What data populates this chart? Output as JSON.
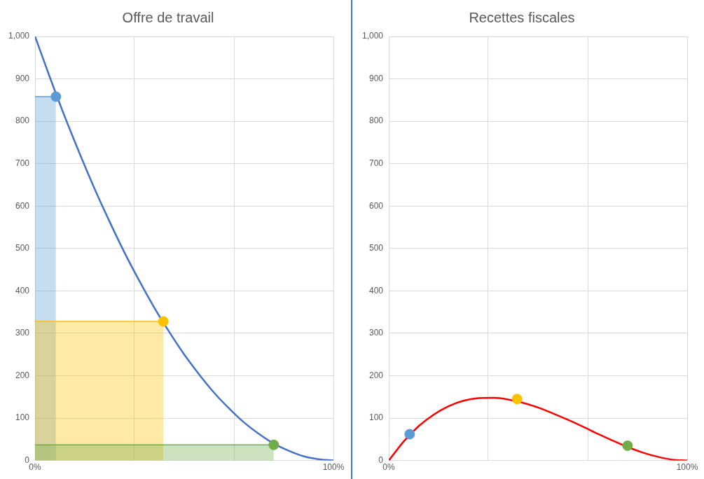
{
  "chart_data": [
    {
      "type": "line",
      "title": "Offre de travail",
      "xlim": [
        0,
        100
      ],
      "ylim": [
        0,
        1000
      ],
      "xticks": [
        {
          "value": 0,
          "label": "0%"
        },
        {
          "value": 33.3,
          "label": null
        },
        {
          "value": 66.7,
          "label": null
        },
        {
          "value": 100,
          "label": "100%"
        }
      ],
      "yticks": [
        0,
        100,
        200,
        300,
        400,
        500,
        600,
        700,
        800,
        900,
        {
          "value": 1000,
          "label": "1,000"
        }
      ],
      "grid": true,
      "legend": false,
      "series": [
        {
          "type": "area",
          "color": "#5b9bd5",
          "x": [
            0,
            7
          ],
          "values": [
            858,
            858
          ]
        },
        {
          "type": "area",
          "color": "#ffc000",
          "x": [
            0,
            43
          ],
          "values": [
            328,
            328
          ]
        },
        {
          "type": "area",
          "color": "#70ad47",
          "x": [
            0,
            80
          ],
          "values": [
            37,
            37
          ]
        },
        {
          "type": "line",
          "color": "#4472c4",
          "x": [
            0,
            5,
            10,
            15,
            20,
            25,
            30,
            35,
            40,
            45,
            50,
            55,
            60,
            65,
            70,
            75,
            80,
            85,
            90,
            95,
            100
          ],
          "values": [
            1000,
            903,
            810,
            723,
            640,
            563,
            490,
            423,
            360,
            303,
            250,
            203,
            160,
            123,
            90,
            63,
            40,
            23,
            10,
            3,
            0
          ]
        },
        {
          "type": "scatter",
          "marker": "circle",
          "color": "#5b9bd5",
          "x": [
            7
          ],
          "values": [
            858
          ]
        },
        {
          "type": "scatter",
          "marker": "circle",
          "color": "#ffc000",
          "x": [
            43
          ],
          "values": [
            328
          ]
        },
        {
          "type": "scatter",
          "marker": "circle",
          "color": "#70ad47",
          "x": [
            80
          ],
          "values": [
            37
          ]
        }
      ]
    },
    {
      "type": "line",
      "title": "Recettes fiscales",
      "xlim": [
        0,
        100
      ],
      "ylim": [
        0,
        1000
      ],
      "xticks": [
        {
          "value": 0,
          "label": "0%"
        },
        {
          "value": 33.3,
          "label": null
        },
        {
          "value": 66.7,
          "label": null
        },
        {
          "value": 100,
          "label": "100%"
        }
      ],
      "yticks": [
        0,
        100,
        200,
        300,
        400,
        500,
        600,
        700,
        800,
        900,
        {
          "value": 1000,
          "label": "1,000"
        }
      ],
      "grid": true,
      "legend": false,
      "series": [
        {
          "type": "line",
          "color": "#ff0000",
          "x": [
            0,
            5,
            10,
            15,
            20,
            25,
            30,
            35,
            40,
            45,
            50,
            55,
            60,
            65,
            70,
            75,
            80,
            85,
            90,
            95,
            100
          ],
          "values": [
            0,
            45,
            81,
            108,
            128,
            141,
            147,
            148,
            144,
            136,
            125,
            111,
            96,
            80,
            63,
            47,
            32,
            19,
            9,
            2,
            0
          ]
        },
        {
          "type": "scatter",
          "marker": "circle",
          "color": "#5b9bd5",
          "x": [
            7
          ],
          "values": [
            62
          ]
        },
        {
          "type": "scatter",
          "marker": "circle",
          "color": "#ffc000",
          "x": [
            43
          ],
          "values": [
            145
          ]
        },
        {
          "type": "scatter",
          "marker": "circle",
          "color": "#70ad47",
          "x": [
            80
          ],
          "values": [
            35
          ]
        }
      ]
    }
  ]
}
